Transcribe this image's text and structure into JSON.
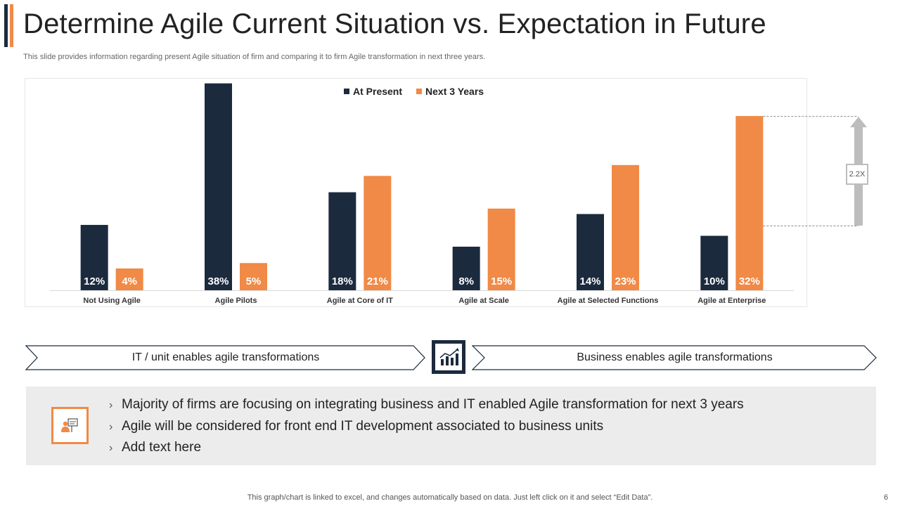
{
  "slide": {
    "title": "Determine Agile Current Situation vs. Expectation in Future",
    "subtitle": "This slide provides information regarding present Agile situation of firm and comparing it to firm Agile transformation in next three years.",
    "footer": "This graph/chart is linked to excel,  and changes automatically based on data. Just left click on it and select “Edit Data”.",
    "page_number": "6"
  },
  "colors": {
    "at_present": "#1c2a3e",
    "next_3_years": "#f08a46",
    "arrow": "#bdbdbd",
    "axis": "#d9d9d9"
  },
  "chart_data": {
    "type": "bar",
    "title": "",
    "xlabel": "",
    "ylabel": "",
    "categories": [
      "Not Using Agile",
      "Agile Pilots",
      "Agile at Core of IT",
      "Agile at Scale",
      "Agile at Selected Functions",
      "Agile at Enterprise"
    ],
    "series": [
      {
        "name": "At Present",
        "values": [
          12,
          38,
          18,
          8,
          14,
          10
        ],
        "labels": [
          "12%",
          "38%",
          "18%",
          "8%",
          "14%",
          "10%"
        ]
      },
      {
        "name": "Next 3 Years",
        "values": [
          4,
          5,
          21,
          15,
          23,
          32
        ],
        "labels": [
          "4%",
          "5%",
          "21%",
          "15%",
          "23%",
          "32%"
        ]
      }
    ],
    "ylim": [
      0,
      40
    ],
    "grid": false,
    "legend": "top-center",
    "annotation": "2.2X"
  },
  "chevrons": {
    "left_label": "IT  / unit enables agile transformations",
    "right_label": "Business enables agile transformations",
    "center_icon": "growth-chart-icon"
  },
  "notes": {
    "icon": "person-presentation-icon",
    "items": [
      "Majority of firms are focusing on integrating business and IT enabled Agile transformation for next 3 years",
      "Agile will be considered for front end IT development associated to business units",
      "Add text here"
    ]
  }
}
